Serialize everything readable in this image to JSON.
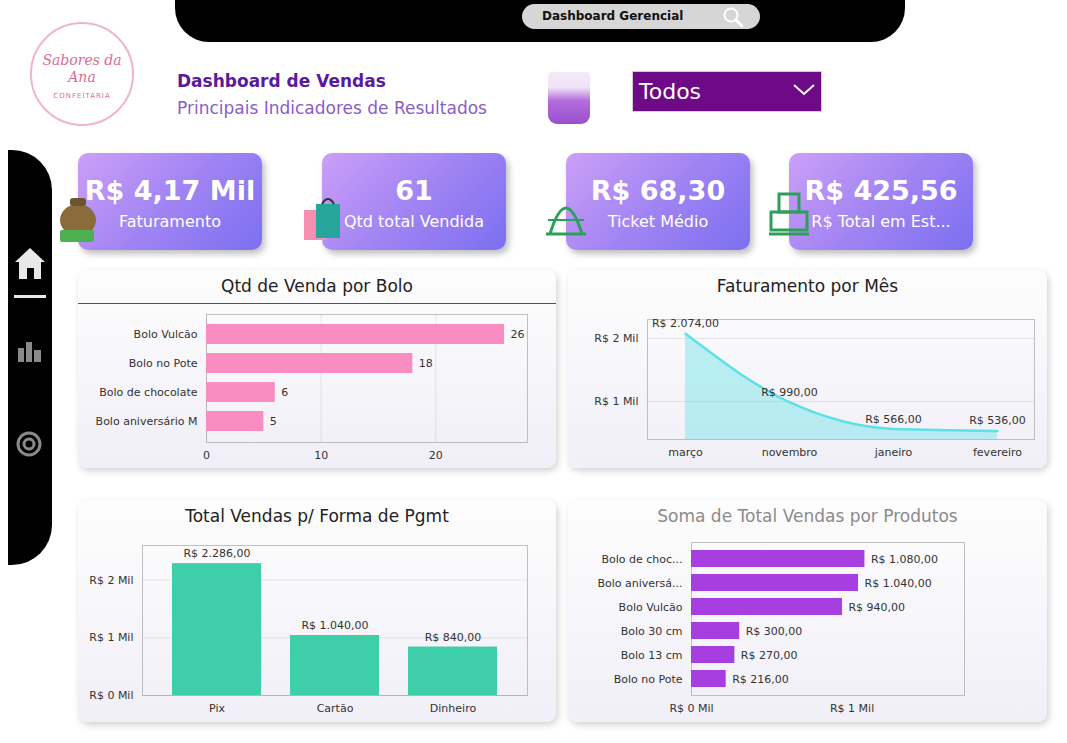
{
  "header": {
    "search": "Dashboard Gerencial",
    "logo": {
      "name": "Sabores da Ana",
      "tagline": "CONFEITARIA"
    },
    "title": "Dashboard de Vendas",
    "subtitle": "Principais Indicadores de Resultados",
    "filter": "Todos"
  },
  "kpis": [
    {
      "value": "R$ 4,17 Mil",
      "label": "Faturamento"
    },
    {
      "value": "61",
      "label": "Qtd total Vendida"
    },
    {
      "value": "R$ 68,30",
      "label": "Ticket Médio"
    },
    {
      "value": "R$ 425,56",
      "label": "R$ Total em Est..."
    }
  ],
  "chart_data": [
    {
      "type": "bar",
      "orientation": "horizontal",
      "title": "Qtd de Venda por Bolo",
      "categories": [
        "Bolo Vulcão",
        "Bolo no Pote",
        "Bolo de chocolate",
        "Bolo aniversário M"
      ],
      "values": [
        26,
        18,
        6,
        5
      ],
      "color": "#f98cc0",
      "xlim": [
        0,
        28
      ],
      "xticks": [
        0,
        10,
        20
      ],
      "grid": true,
      "data_labels": true
    },
    {
      "type": "area",
      "title": "Faturamento por Mês",
      "categories": [
        "março",
        "novembro",
        "janeiro",
        "fevereiro"
      ],
      "values": [
        2074,
        990,
        566,
        536
      ],
      "value_labels": [
        "R$ 2.074,00",
        "R$ 990,00",
        "R$ 566,00",
        "R$ 536,00"
      ],
      "color": "#5ce1e6",
      "ylim": [
        400,
        2300
      ],
      "yticks": [
        {
          "value": 1000,
          "label": "R$ 1 Mil"
        },
        {
          "value": 2000,
          "label": "R$ 2 Mil"
        }
      ],
      "grid": true,
      "data_labels": true
    },
    {
      "type": "bar",
      "title": "Total Vendas p/ Forma de Pgmt",
      "categories": [
        "Pix",
        "Cartão",
        "Dinheiro"
      ],
      "values": [
        2286,
        1040,
        840
      ],
      "value_labels": [
        "R$ 2.286,00",
        "R$ 1.040,00",
        "R$ 840,00"
      ],
      "color": "#3ecfaa",
      "ylim": [
        0,
        2600
      ],
      "yticks": [
        {
          "value": 0,
          "label": "R$ 0 Mil"
        },
        {
          "value": 1000,
          "label": "R$ 1 Mil"
        },
        {
          "value": 2000,
          "label": "R$ 2 Mil"
        }
      ],
      "grid": true,
      "data_labels": true
    },
    {
      "type": "bar",
      "orientation": "horizontal",
      "title": "Soma de Total Vendas por Produtos",
      "categories": [
        "Bolo de choc...",
        "Bolo aniversá...",
        "Bolo Vulcão",
        "Bolo 30 cm",
        "Bolo 13 cm",
        "Bolo no Pote"
      ],
      "values": [
        1080,
        1040,
        940,
        300,
        270,
        216
      ],
      "value_labels": [
        "R$ 1.080,00",
        "R$ 1.040,00",
        "R$ 940,00",
        "R$ 300,00",
        "R$ 270,00",
        "R$ 216,00"
      ],
      "color": "#a63ee0",
      "xlim": [
        0,
        1700
      ],
      "xticks": [
        {
          "value": 0,
          "label": "R$ 0 Mil"
        },
        {
          "value": 1000,
          "label": "R$ 1 Mil"
        }
      ],
      "grid": false,
      "data_labels": true
    }
  ]
}
